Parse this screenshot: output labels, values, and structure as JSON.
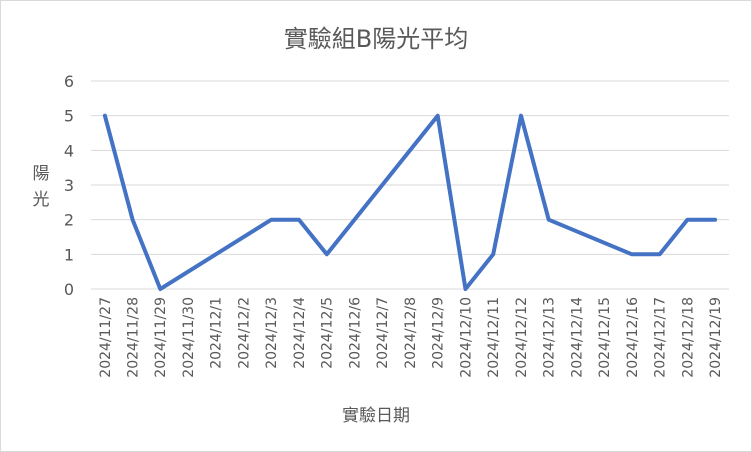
{
  "chart_data": {
    "type": "line",
    "title": "實驗組B陽光平均",
    "xlabel": "實驗日期",
    "ylabel": "陽光",
    "ylim": [
      0,
      6
    ],
    "yticks": [
      "0",
      "1",
      "2",
      "3",
      "4",
      "5",
      "6"
    ],
    "grid": true,
    "categories": [
      "2024/11/27",
      "2024/11/28",
      "2024/11/29",
      "2024/11/30",
      "2024/12/1",
      "2024/12/2",
      "2024/12/3",
      "2024/12/4",
      "2024/12/5",
      "2024/12/6",
      "2024/12/7",
      "2024/12/8",
      "2024/12/9",
      "2024/12/10",
      "2024/12/11",
      "2024/12/12",
      "2024/12/13",
      "2024/12/14",
      "2024/12/15",
      "2024/12/16",
      "2024/12/17",
      "2024/12/18",
      "2024/12/19"
    ],
    "series": [
      {
        "values": [
          5,
          2,
          0,
          null,
          null,
          null,
          2,
          2,
          1,
          null,
          null,
          null,
          5,
          0,
          1,
          5,
          2,
          null,
          null,
          1,
          1,
          2,
          2
        ]
      }
    ],
    "line_color": "#4472c4",
    "grid_color": "#d9d9d9"
  }
}
